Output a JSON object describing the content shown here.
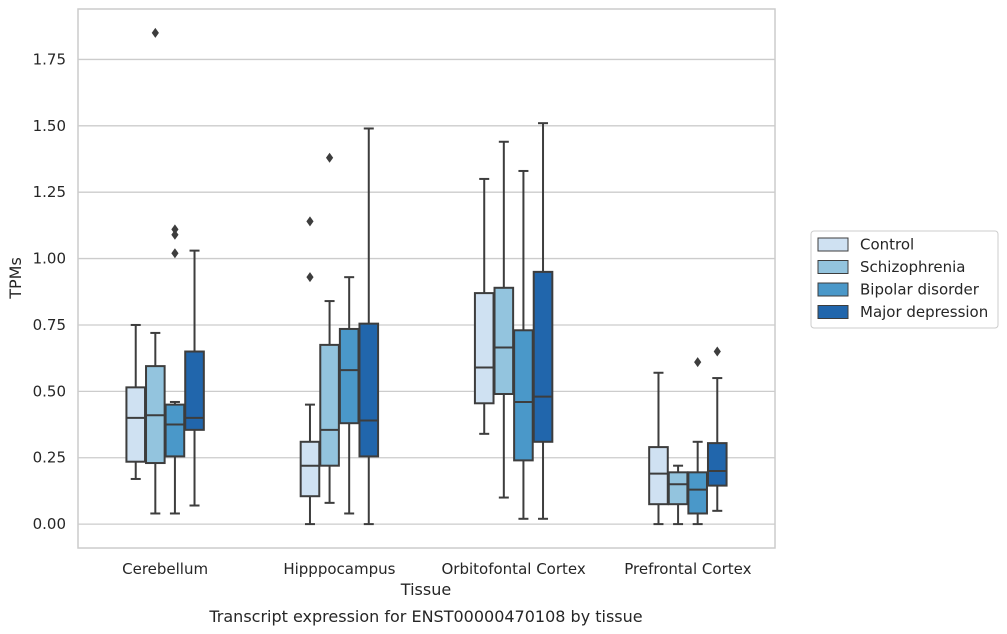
{
  "caption": "Transcript expression for ENST00000470108 by tissue",
  "colors": {
    "background": "#ffffff",
    "grid": "#cccccc",
    "frame": "#cccccc",
    "box_edge": "#3d3d3d",
    "text": "#262626"
  },
  "chart_data": {
    "type": "box",
    "xlabel": "Tissue",
    "ylabel": "TPMs",
    "ylim": [
      -0.09,
      1.94
    ],
    "yticks": [
      0.0,
      0.25,
      0.5,
      0.75,
      1.0,
      1.25,
      1.5,
      1.75
    ],
    "ytick_labels": [
      "0.00",
      "0.25",
      "0.50",
      "0.75",
      "1.00",
      "1.25",
      "1.50",
      "1.75"
    ],
    "grid": "horizontal",
    "legend_position": "right",
    "categories": [
      "Cerebellum",
      "Hipppocampus",
      "Orbitofontal Cortex",
      "Prefrontal Cortex"
    ],
    "series": [
      {
        "name": "Control",
        "color": "#cfe1f2",
        "boxes": [
          {
            "whislo": 0.17,
            "q1": 0.235,
            "med": 0.4,
            "q3": 0.515,
            "whishi": 0.75,
            "fliers": []
          },
          {
            "whislo": 0.0,
            "q1": 0.105,
            "med": 0.22,
            "q3": 0.31,
            "whishi": 0.45,
            "fliers": [
              0.93,
              1.14
            ]
          },
          {
            "whislo": 0.34,
            "q1": 0.455,
            "med": 0.59,
            "q3": 0.87,
            "whishi": 1.3,
            "fliers": []
          },
          {
            "whislo": 0.0,
            "q1": 0.075,
            "med": 0.19,
            "q3": 0.29,
            "whishi": 0.57,
            "fliers": []
          }
        ]
      },
      {
        "name": "Schizophrenia",
        "color": "#93c4de",
        "boxes": [
          {
            "whislo": 0.04,
            "q1": 0.23,
            "med": 0.41,
            "q3": 0.595,
            "whishi": 0.72,
            "fliers": [
              1.85
            ]
          },
          {
            "whislo": 0.08,
            "q1": 0.22,
            "med": 0.355,
            "q3": 0.675,
            "whishi": 0.84,
            "fliers": [
              1.38
            ]
          },
          {
            "whislo": 0.1,
            "q1": 0.49,
            "med": 0.665,
            "q3": 0.89,
            "whishi": 1.44,
            "fliers": []
          },
          {
            "whislo": 0.0,
            "q1": 0.075,
            "med": 0.15,
            "q3": 0.195,
            "whishi": 0.22,
            "fliers": []
          }
        ]
      },
      {
        "name": "Bipolar disorder",
        "color": "#4a98c9",
        "boxes": [
          {
            "whislo": 0.04,
            "q1": 0.255,
            "med": 0.375,
            "q3": 0.45,
            "whishi": 0.46,
            "fliers": [
              1.02,
              1.09,
              1.11
            ]
          },
          {
            "whislo": 0.04,
            "q1": 0.38,
            "med": 0.58,
            "q3": 0.735,
            "whishi": 0.93,
            "fliers": []
          },
          {
            "whislo": 0.02,
            "q1": 0.24,
            "med": 0.46,
            "q3": 0.73,
            "whishi": 1.33,
            "fliers": []
          },
          {
            "whislo": 0.0,
            "q1": 0.04,
            "med": 0.13,
            "q3": 0.195,
            "whishi": 0.31,
            "fliers": [
              0.61
            ]
          }
        ]
      },
      {
        "name": "Major depression",
        "color": "#2166ac",
        "boxes": [
          {
            "whislo": 0.07,
            "q1": 0.355,
            "med": 0.4,
            "q3": 0.65,
            "whishi": 1.03,
            "fliers": []
          },
          {
            "whislo": 0.0,
            "q1": 0.255,
            "med": 0.39,
            "q3": 0.755,
            "whishi": 1.49,
            "fliers": []
          },
          {
            "whislo": 0.02,
            "q1": 0.31,
            "med": 0.48,
            "q3": 0.95,
            "whishi": 1.51,
            "fliers": []
          },
          {
            "whislo": 0.05,
            "q1": 0.145,
            "med": 0.2,
            "q3": 0.305,
            "whishi": 0.55,
            "fliers": [
              0.65
            ]
          }
        ]
      }
    ]
  }
}
